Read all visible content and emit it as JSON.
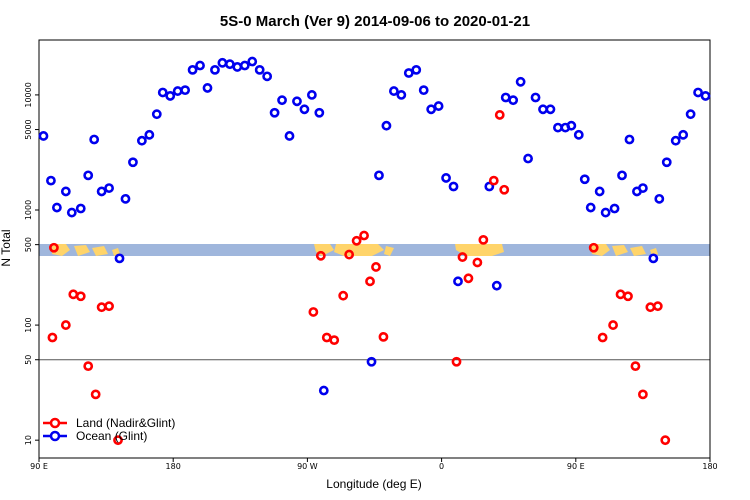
{
  "chart_data": {
    "type": "scatter",
    "title": "5S-0 March (Ver 9)   2014-09-06 to 2020-01-21",
    "xlabel": "Longitude (deg E)",
    "ylabel": "N Total",
    "x_ticks": [
      {
        "label": "90 E",
        "value": 0
      },
      {
        "label": "180",
        "value": 90
      },
      {
        "label": "90 W",
        "value": 180
      },
      {
        "label": "0",
        "value": 270
      },
      {
        "label": "90 E",
        "value": 360
      },
      {
        "label": "180",
        "value": 450
      }
    ],
    "xlim": [
      0,
      450
    ],
    "y_scale": "log",
    "ylim": [
      7,
      30000
    ],
    "y_ticks": [
      10,
      50,
      100,
      500,
      1000,
      5000,
      10000
    ],
    "reference_line": 50,
    "colors": {
      "land": "#ff0000",
      "ocean": "#0000ee",
      "map_ocean": "#9fb6dc",
      "map_land": "#ffd46a",
      "reference_line": "#555555"
    },
    "legend": {
      "position": "bottom-left",
      "items": [
        {
          "label": "Land (Nadir&Glint)",
          "series": "land"
        },
        {
          "label": "Ocean (Glint)",
          "series": "ocean"
        }
      ]
    },
    "series": [
      {
        "name": "Ocean (Glint)",
        "key": "ocean",
        "points": [
          [
            3,
            4400
          ],
          [
            8,
            1800
          ],
          [
            12,
            1050
          ],
          [
            18,
            1450
          ],
          [
            22,
            950
          ],
          [
            28,
            1030
          ],
          [
            33,
            2000
          ],
          [
            37,
            4100
          ],
          [
            42,
            1450
          ],
          [
            47,
            1550
          ],
          [
            54,
            380
          ],
          [
            58,
            1250
          ],
          [
            63,
            2600
          ],
          [
            69,
            4000
          ],
          [
            74,
            4500
          ],
          [
            79,
            6800
          ],
          [
            83,
            10500
          ],
          [
            88,
            9800
          ],
          [
            93,
            10800
          ],
          [
            98,
            11000
          ],
          [
            103,
            16500
          ],
          [
            108,
            18000
          ],
          [
            113,
            11500
          ],
          [
            118,
            16500
          ],
          [
            123,
            19000
          ],
          [
            128,
            18500
          ],
          [
            133,
            17500
          ],
          [
            138,
            18000
          ],
          [
            143,
            19500
          ],
          [
            148,
            16500
          ],
          [
            153,
            14500
          ],
          [
            158,
            7000
          ],
          [
            163,
            9000
          ],
          [
            168,
            4400
          ],
          [
            173,
            8800
          ],
          [
            178,
            7500
          ],
          [
            183,
            10000
          ],
          [
            188,
            7000
          ],
          [
            191,
            27
          ],
          [
            223,
            48
          ],
          [
            228,
            2000
          ],
          [
            233,
            5400
          ],
          [
            238,
            10800
          ],
          [
            243,
            10000
          ],
          [
            248,
            15500
          ],
          [
            253,
            16500
          ],
          [
            258,
            11000
          ],
          [
            263,
            7500
          ],
          [
            268,
            8000
          ],
          [
            273,
            1900
          ],
          [
            278,
            1600
          ],
          [
            281,
            240
          ],
          [
            302,
            1600
          ],
          [
            307,
            220
          ],
          [
            313,
            9500
          ],
          [
            318,
            9000
          ],
          [
            323,
            13000
          ],
          [
            328,
            2800
          ],
          [
            333,
            9500
          ],
          [
            338,
            7500
          ],
          [
            343,
            7500
          ],
          [
            348,
            5200
          ],
          [
            353,
            5200
          ],
          [
            357,
            5400
          ],
          [
            362,
            4500
          ],
          [
            366,
            1850
          ],
          [
            370,
            1050
          ],
          [
            376,
            1450
          ],
          [
            380,
            950
          ],
          [
            386,
            1030
          ],
          [
            391,
            2000
          ],
          [
            396,
            4100
          ],
          [
            401,
            1450
          ],
          [
            405,
            1550
          ],
          [
            412,
            380
          ],
          [
            416,
            1250
          ],
          [
            421,
            2600
          ],
          [
            427,
            4000
          ],
          [
            432,
            4500
          ],
          [
            437,
            6800
          ],
          [
            442,
            10500
          ],
          [
            447,
            9800
          ]
        ]
      },
      {
        "name": "Land (Nadir&Glint)",
        "key": "land",
        "points": [
          [
            10,
            470
          ],
          [
            9,
            78
          ],
          [
            18,
            100
          ],
          [
            23,
            185
          ],
          [
            28,
            178
          ],
          [
            33,
            44
          ],
          [
            38,
            25
          ],
          [
            42,
            143
          ],
          [
            47,
            146
          ],
          [
            53,
            10
          ],
          [
            184,
            130
          ],
          [
            189,
            400
          ],
          [
            193,
            78
          ],
          [
            198,
            74
          ],
          [
            204,
            180
          ],
          [
            208,
            410
          ],
          [
            213,
            540
          ],
          [
            218,
            600
          ],
          [
            222,
            240
          ],
          [
            226,
            320
          ],
          [
            231,
            79
          ],
          [
            280,
            48
          ],
          [
            284,
            390
          ],
          [
            288,
            255
          ],
          [
            294,
            350
          ],
          [
            298,
            550
          ],
          [
            305,
            1800
          ],
          [
            309,
            6700
          ],
          [
            312,
            1500
          ],
          [
            372,
            470
          ],
          [
            378,
            78
          ],
          [
            385,
            100
          ],
          [
            390,
            185
          ],
          [
            395,
            178
          ],
          [
            400,
            44
          ],
          [
            405,
            25
          ],
          [
            410,
            143
          ],
          [
            415,
            146
          ],
          [
            420,
            10
          ]
        ]
      }
    ]
  }
}
